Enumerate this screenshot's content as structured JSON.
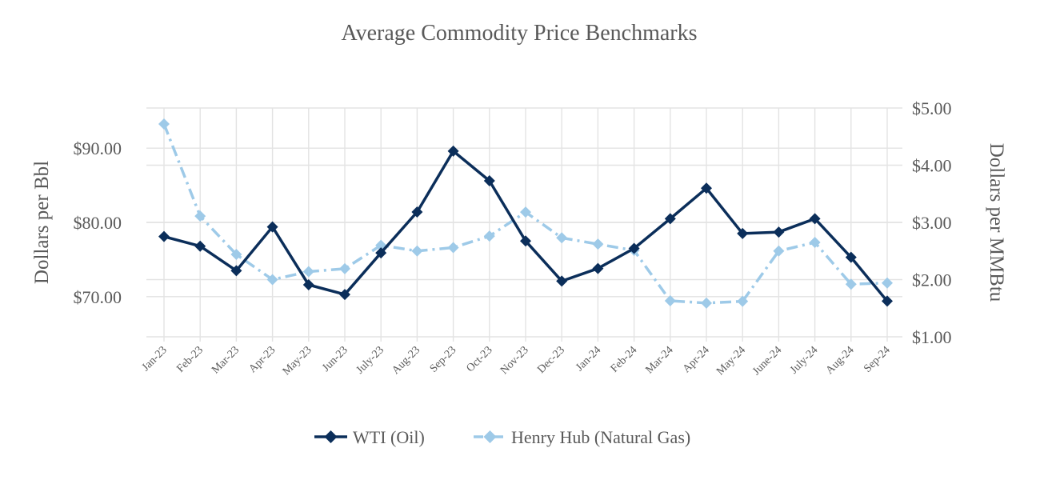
{
  "chart_data": {
    "type": "line",
    "title": "Average Commodity Price Benchmarks",
    "categories": [
      "Jan-23",
      "Feb-23",
      "Mar-23",
      "Apr-23",
      "May-23",
      "Jun-23",
      "July-23",
      "Aug-23",
      "Sep-23",
      "Oct-23",
      "Nov-23",
      "Dec-23",
      "Jan-24",
      "Feb-24",
      "Mar-24",
      "Apr-24",
      "May-24",
      "June-24",
      "July-24",
      "Aug-24",
      "Sep-24"
    ],
    "y_left": {
      "label": "Dollars per Bbl",
      "range": [
        64.6,
        95.4
      ],
      "ticks": [
        70,
        80,
        90
      ],
      "tick_labels": [
        "$70.00",
        "$80.00",
        "$90.00"
      ]
    },
    "y_right": {
      "label": "Dollars per MMBtu",
      "range": [
        1.0,
        5.0
      ],
      "ticks": [
        1,
        2,
        3,
        4,
        5
      ],
      "tick_labels": [
        "$1.00",
        "$2.00",
        "$3.00",
        "$4.00",
        "$5.00"
      ]
    },
    "grid": true,
    "legend_position": "bottom",
    "series": [
      {
        "name": "WTI (Oil)",
        "axis": "left",
        "color": "#0b2e5a",
        "line_style": "solid",
        "marker": "diamond",
        "values": [
          78.1,
          76.8,
          73.5,
          79.4,
          71.6,
          70.3,
          75.9,
          81.4,
          89.6,
          85.6,
          77.5,
          72.1,
          73.8,
          76.5,
          80.5,
          84.6,
          78.5,
          78.7,
          80.5,
          75.3,
          69.4
        ]
      },
      {
        "name": "Henry Hub (Natural Gas)",
        "axis": "right",
        "color": "#9ecae8",
        "line_style": "dash-dot",
        "marker": "diamond",
        "values": [
          4.72,
          3.11,
          2.44,
          2.0,
          2.14,
          2.19,
          2.6,
          2.5,
          2.56,
          2.76,
          3.18,
          2.73,
          2.62,
          2.51,
          1.63,
          1.59,
          1.62,
          2.5,
          2.65,
          1.92,
          1.94
        ]
      }
    ]
  }
}
